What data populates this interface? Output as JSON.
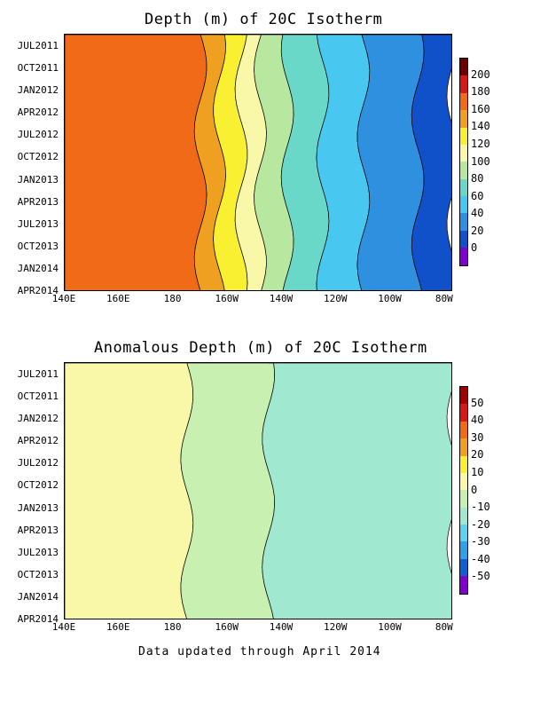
{
  "chart_data": [
    {
      "type": "heatmap",
      "title": "Depth (m) of 20C Isotherm",
      "x_ticks": [
        "140E",
        "160E",
        "180",
        "160W",
        "140W",
        "120W",
        "100W",
        "80W"
      ],
      "y_ticks": [
        "JUL2011",
        "OCT2011",
        "JAN2012",
        "APR2012",
        "JUL2012",
        "OCT2012",
        "JAN2013",
        "APR2013",
        "JUL2013",
        "OCT2013",
        "JAN2014",
        "APR2014"
      ],
      "colorbar": {
        "labels": [
          "200",
          "180",
          "160",
          "140",
          "120",
          "100",
          "80",
          "60",
          "40",
          "20",
          "0"
        ],
        "colors": [
          "#6b0000",
          "#d81818",
          "#f06a18",
          "#f0a020",
          "#f8f030",
          "#f8f8a8",
          "#b8e8a0",
          "#6ad8c8",
          "#48c8f0",
          "#3090e0",
          "#1050c8",
          "#8000d0"
        ]
      },
      "bands_east_to_west_description": null,
      "lon_range": [
        "140E",
        "80W"
      ],
      "zones": [
        {
          "level": 180,
          "lon_from_deg": 140,
          "lon_to_deg": 190
        },
        {
          "level": 160,
          "lon_from_deg": 190,
          "lon_to_deg": 197
        },
        {
          "level": 140,
          "lon_from_deg": 197,
          "lon_to_deg": 205
        },
        {
          "level": 120,
          "lon_from_deg": 205,
          "lon_to_deg": 212
        },
        {
          "level": 100,
          "lon_from_deg": 212,
          "lon_to_deg": 222
        },
        {
          "level": 80,
          "lon_from_deg": 222,
          "lon_to_deg": 235
        },
        {
          "level": 60,
          "lon_from_deg": 235,
          "lon_to_deg": 250
        },
        {
          "level": 40,
          "lon_from_deg": 250,
          "lon_to_deg": 270
        },
        {
          "level": 20,
          "lon_from_deg": 270,
          "lon_to_deg": 283
        }
      ]
    },
    {
      "type": "heatmap",
      "title": "Anomalous Depth (m) of 20C Isotherm",
      "x_ticks": [
        "140E",
        "160E",
        "180",
        "160W",
        "140W",
        "120W",
        "100W",
        "80W"
      ],
      "y_ticks": [
        "JUL2011",
        "OCT2011",
        "JAN2012",
        "APR2012",
        "JUL2012",
        "OCT2012",
        "JAN2013",
        "APR2013",
        "JUL2013",
        "OCT2013",
        "JAN2014",
        "APR2014"
      ],
      "colorbar": {
        "labels": [
          "50",
          "40",
          "30",
          "20",
          "10",
          "0",
          "-10",
          "-20",
          "-30",
          "-40",
          "-50"
        ],
        "colors": [
          "#a00000",
          "#d81818",
          "#f06a18",
          "#f0a020",
          "#f8f030",
          "#f8f8a8",
          "#c8f0b0",
          "#a0e8d0",
          "#60d0f0",
          "#30a0e8",
          "#1060d0",
          "#8000d0"
        ]
      },
      "zones": [
        {
          "level": 10,
          "lon_from_deg": 140,
          "lon_to_deg": 185
        },
        {
          "level": 0,
          "lon_from_deg": 185,
          "lon_to_deg": 215
        },
        {
          "level": -10,
          "lon_from_deg": 215,
          "lon_to_deg": 283
        }
      ]
    }
  ],
  "footer": "Data updated through April 2014"
}
